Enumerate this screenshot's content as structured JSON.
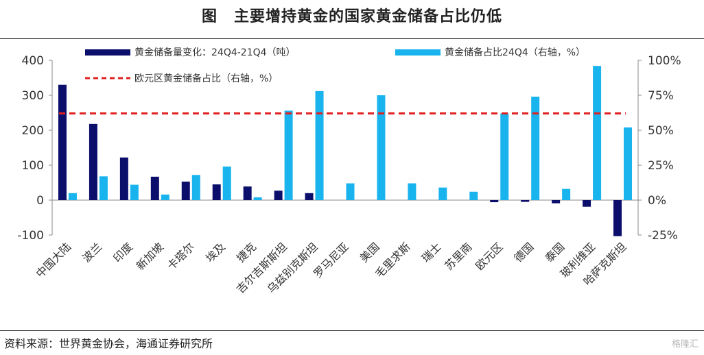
{
  "figure": {
    "label": "图",
    "title": "主要增持黄金的国家黄金储备占比仍低",
    "source": "资料来源：世界黄金协会，海通证券研究所",
    "watermark": "格隆汇"
  },
  "chart_data": {
    "type": "bar",
    "categories": [
      "中国大陆",
      "波兰",
      "印度",
      "新加坡",
      "卡塔尔",
      "埃及",
      "捷克",
      "吉尔吉斯斯坦",
      "乌兹别克斯坦",
      "罗马尼亚",
      "美国",
      "毛里求斯",
      "瑞士",
      "苏里南",
      "欧元区",
      "德国",
      "泰国",
      "玻利维亚",
      "哈萨克斯坦"
    ],
    "series": [
      {
        "name": "黄金储备量变化：24Q4-21Q4（吨）",
        "axis": "left",
        "color": "#0b0f6b",
        "values": [
          330,
          218,
          122,
          67,
          53,
          45,
          39,
          27,
          20,
          null,
          null,
          null,
          null,
          null,
          -6,
          -5,
          -9,
          -19,
          -103
        ]
      },
      {
        "name": "黄金储备占比24Q4（右轴，%）",
        "axis": "right",
        "color": "#19b4ee",
        "values": [
          5,
          17,
          11,
          4,
          18,
          24,
          2,
          64,
          78,
          12,
          75,
          12,
          9,
          6,
          62,
          74,
          8,
          96,
          52
        ]
      },
      {
        "name": "欧元区黄金储备占比（右轴，%）",
        "axis": "right",
        "type": "line",
        "style": "dashed",
        "color": "#e02020",
        "value": 62
      }
    ],
    "y_left": {
      "ylim": [
        -100,
        400
      ],
      "ticks": [
        -100,
        0,
        100,
        200,
        300,
        400
      ]
    },
    "y_right": {
      "ylim": [
        -25,
        100
      ],
      "ticks": [
        "-25%",
        "0%",
        "25%",
        "50%",
        "75%",
        "100%"
      ]
    },
    "legend_position": "top",
    "grid": false
  }
}
